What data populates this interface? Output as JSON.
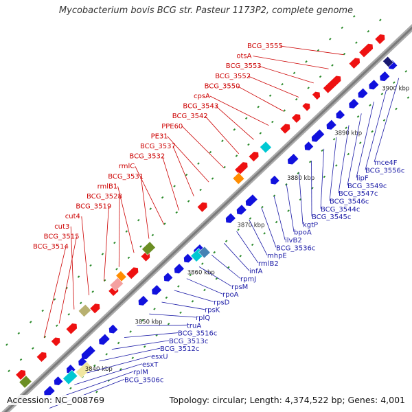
{
  "title": "Mycobacterium bovis BCG str. Pasteur 1173P2, complete genome",
  "footer": {
    "accession": "Accession: NC_008769",
    "topology": "Topology: circular; Length: 4,374,522 bp; Genes: 4,001"
  },
  "scale_labels": [
    "3840 kbp",
    "3850 kbp",
    "3860 kbp",
    "3870 kbp",
    "3880 kbp",
    "3890 kbp",
    "3900 kbp"
  ],
  "forward_labels": [
    "BCG_3555",
    "otsA",
    "BCG_3553",
    "BCG_3552",
    "BCG_3550",
    "cpsA",
    "BCG_3543",
    "BCG_3542",
    "PPE60",
    "PE31",
    "BCG_3537",
    "BCG_3532",
    "rmlC",
    "BCG_3531",
    "rmlB1",
    "BCG_3528",
    "BCG_3519",
    "cut4",
    "cut3",
    "BCG_3515",
    "BCG_3514"
  ],
  "reverse_labels": [
    "mce4F",
    "BCG_3556c",
    "lipF",
    "BCG_3549c",
    "BCG_3547c",
    "BCG_3546c",
    "BCG_3544c",
    "BCG_3545c",
    "kgtP",
    "bpoA",
    "ilvB2",
    "BCG_3536c",
    "mhpE",
    "rmlB2",
    "infA",
    "rpmJ",
    "rpsM",
    "rpoA",
    "rpsD",
    "rpsK",
    "rplQ",
    "truA",
    "BCG_3516c",
    "BCG_3513c",
    "BCG_3512c",
    "esxU",
    "esxT",
    "rplM",
    "BCG_3506c"
  ],
  "colors": {
    "forward_gene": "#ee1111",
    "reverse_gene": "#1111dd",
    "forward_label": "#cc0000",
    "reverse_label": "#1a1aa6",
    "backbone": "#888888",
    "tick": "#2a8a2a"
  }
}
